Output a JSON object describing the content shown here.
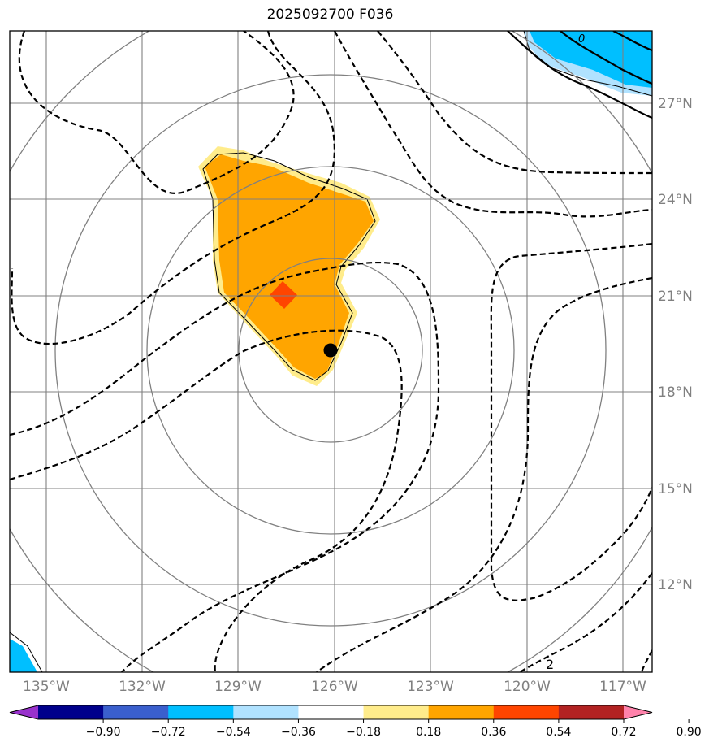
{
  "title": "2025092700 F036",
  "lon_labels": [
    "135°W",
    "132°W",
    "129°W",
    "126°W",
    "123°W",
    "120°W",
    "117°W"
  ],
  "lat_labels": [
    "27°N",
    "24°N",
    "21°N",
    "18°N",
    "15°N",
    "12°N"
  ],
  "contour_label": "2",
  "contour_label_small": "0",
  "colorbar": {
    "ticks": [
      "−0.90",
      "−0.72",
      "−0.54",
      "−0.36",
      "−0.18",
      "0.18",
      "0.36",
      "0.54",
      "0.72",
      "0.90"
    ],
    "colors": [
      "#9932cc",
      "#00008b",
      "#3a5fcd",
      "#00bfff",
      "#b0e2ff",
      "#ffffff",
      "#ffec8b",
      "#ffa500",
      "#ff4500",
      "#b22222",
      "#ff82ab"
    ]
  },
  "center_marker": {
    "lon": -126.1,
    "lat": 19.3
  }
}
